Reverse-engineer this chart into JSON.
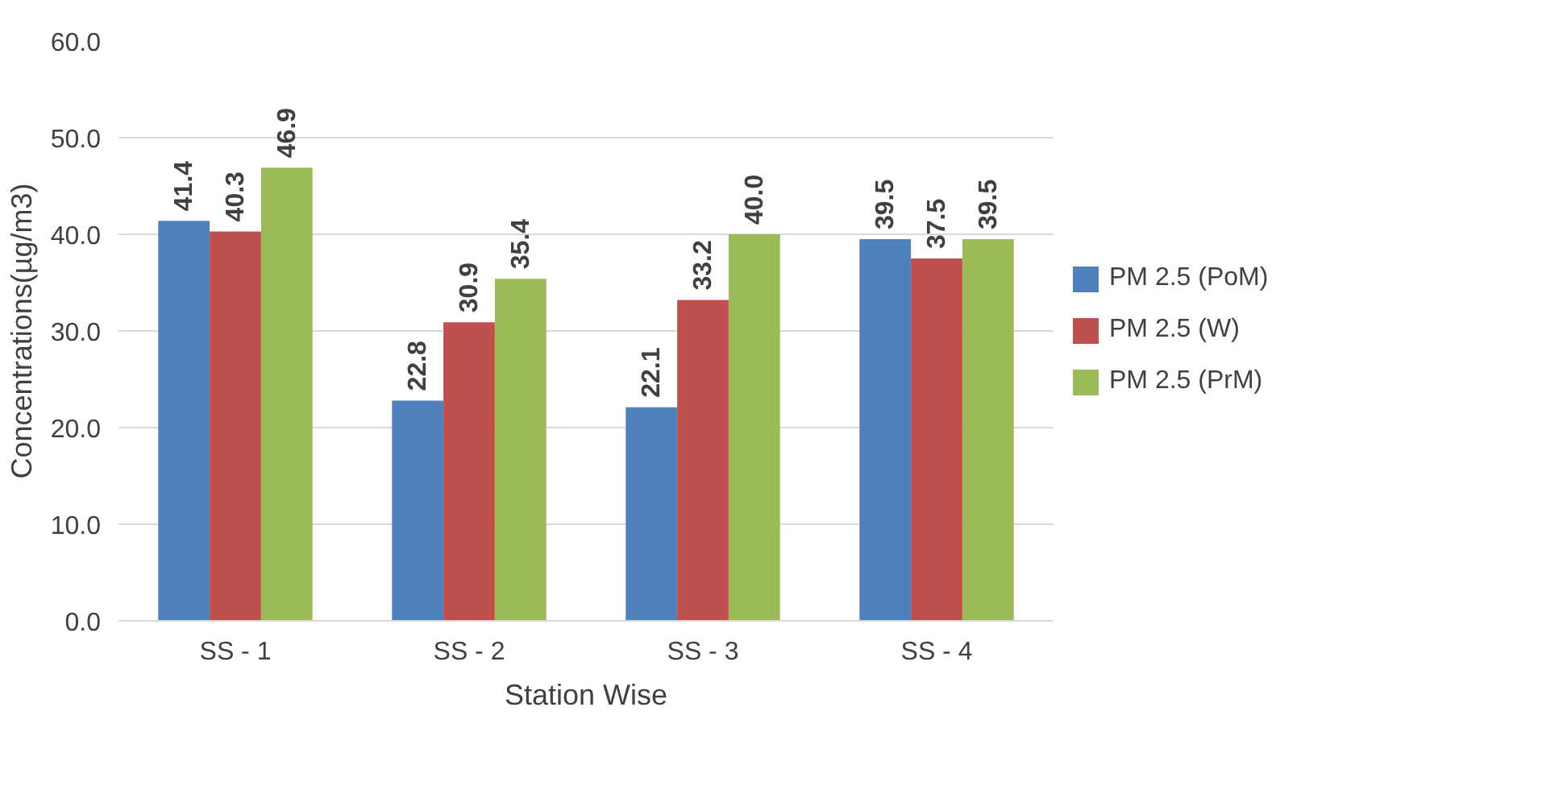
{
  "chart_data": {
    "type": "bar",
    "xlabel": "Station Wise",
    "ylabel": "Concentrations(µg/m3)",
    "categories": [
      "SS - 1",
      "SS - 2",
      "SS - 3",
      "SS - 4"
    ],
    "series": [
      {
        "name": "PM 2.5 (PoM)",
        "color": "#4f81bd",
        "values": [
          41.4,
          22.8,
          22.1,
          39.5
        ]
      },
      {
        "name": "PM 2.5 (W)",
        "color": "#c0504d",
        "values": [
          40.3,
          30.9,
          33.2,
          37.5
        ]
      },
      {
        "name": "PM 2.5 (PrM)",
        "color": "#9bbb59",
        "values": [
          46.9,
          35.4,
          40.0,
          39.5
        ]
      }
    ],
    "value_labels": [
      [
        "41.4",
        "22.8",
        "22.1",
        "39.5"
      ],
      [
        "40.3",
        "30.9",
        "33.2",
        "37.5"
      ],
      [
        "46.9",
        "35.4",
        "40.0",
        "39.5"
      ]
    ],
    "ylim": [
      0,
      60
    ],
    "yticks": [
      {
        "value": 0,
        "label": "0.0"
      },
      {
        "value": 10,
        "label": "10.0"
      },
      {
        "value": 20,
        "label": "20.0"
      },
      {
        "value": 30,
        "label": "30.0"
      },
      {
        "value": 40,
        "label": "40.0"
      },
      {
        "value": 50,
        "label": "50.0"
      },
      {
        "value": 60,
        "label": "60.0"
      }
    ],
    "grid": "y",
    "legend": "right"
  }
}
